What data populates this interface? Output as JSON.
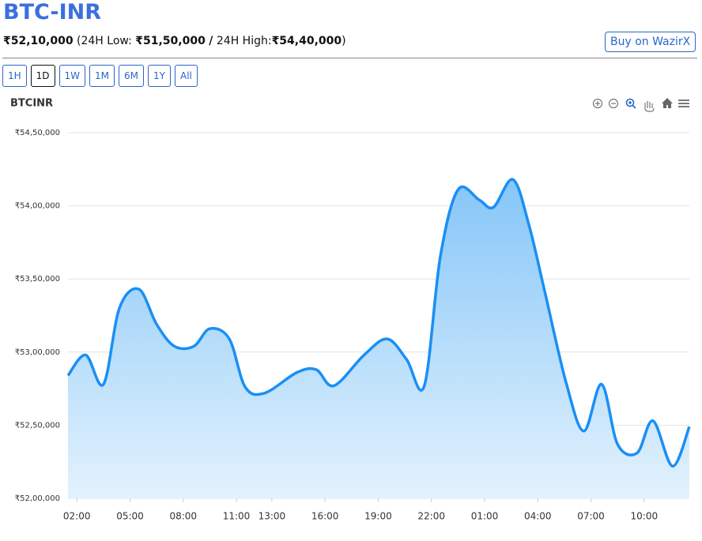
{
  "header": {
    "title": "BTC-INR",
    "price": "₹52,10,000",
    "low_label": "(24H Low:",
    "low": "₹51,50,000",
    "separator": "/",
    "high_label": "24H High:",
    "high": "₹54,40,000",
    "close": ")",
    "buy_button": "Buy on WazirX"
  },
  "ranges": {
    "items": [
      "1H",
      "1D",
      "1W",
      "1M",
      "6M",
      "1Y",
      "All"
    ],
    "active": "1D"
  },
  "chart_data": {
    "type": "area",
    "title": "BTCINR",
    "color": "#1a8ff5",
    "grid": true,
    "x": [
      1.5,
      2.5,
      3.5,
      4.4,
      5.5,
      6.5,
      7.5,
      8.6,
      9.5,
      10.6,
      11.5,
      12.6,
      14.4,
      15.5,
      16.5,
      18.2,
      19.5,
      20.6,
      21.6,
      22.5,
      23.5,
      24.7,
      25.5,
      26.6,
      27.5,
      28.4,
      29.6,
      30.6,
      31.6,
      32.5,
      33.6,
      34.5,
      35.6,
      36.55
    ],
    "values": [
      5284000,
      5298000,
      5278000,
      5330000,
      5343000,
      5319000,
      5304000,
      5304000,
      5316000,
      5309000,
      5276000,
      5272000,
      5286000,
      5288000,
      5277000,
      5298000,
      5309000,
      5295000,
      5277000,
      5365000,
      5411000,
      5404000,
      5399000,
      5418000,
      5387000,
      5341000,
      5279000,
      5246000,
      5278000,
      5237000,
      5231000,
      5253000,
      5222000,
      5249000
    ],
    "xlim": [
      1.5,
      36.55
    ],
    "xticks": [
      {
        "value": 2,
        "label": "02:00"
      },
      {
        "value": 5,
        "label": "05:00"
      },
      {
        "value": 8,
        "label": "08:00"
      },
      {
        "value": 11,
        "label": "11:00"
      },
      {
        "value": 13,
        "label": "13:00"
      },
      {
        "value": 16,
        "label": "16:00"
      },
      {
        "value": 19,
        "label": "19:00"
      },
      {
        "value": 22,
        "label": "22:00"
      },
      {
        "value": 25,
        "label": "01:00"
      },
      {
        "value": 28,
        "label": "04:00"
      },
      {
        "value": 31,
        "label": "07:00"
      },
      {
        "value": 34,
        "label": "10:00"
      }
    ],
    "ylim": [
      5200000,
      5450000
    ],
    "yticks": [
      {
        "value": 5200000,
        "label": "₹52,00,000"
      },
      {
        "value": 5250000,
        "label": "₹52,50,000"
      },
      {
        "value": 5300000,
        "label": "₹53,00,000"
      },
      {
        "value": 5350000,
        "label": "₹53,50,000"
      },
      {
        "value": 5400000,
        "label": "₹54,00,000"
      },
      {
        "value": 5450000,
        "label": "₹54,50,000"
      }
    ]
  }
}
